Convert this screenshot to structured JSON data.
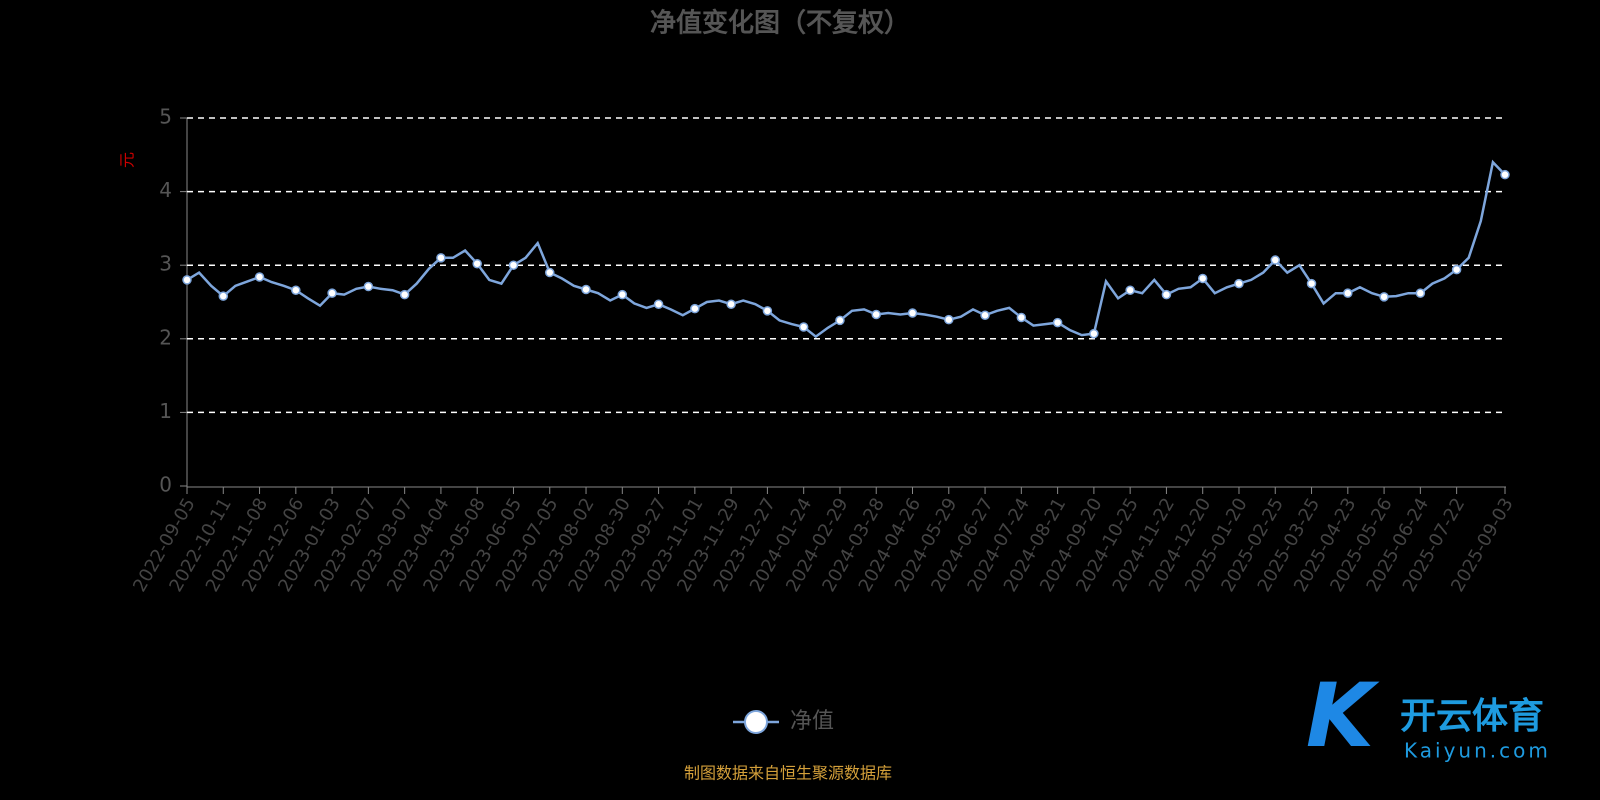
{
  "chart_data": {
    "type": "line",
    "title": "净值变化图（不复权）",
    "y_label": "元",
    "categories": [
      "2022-09-05",
      null,
      null,
      "2022-10-11",
      null,
      null,
      "2022-11-08",
      null,
      null,
      "2022-12-06",
      null,
      null,
      "2023-01-03",
      null,
      null,
      "2023-02-07",
      null,
      null,
      "2023-03-07",
      null,
      null,
      "2023-04-04",
      null,
      null,
      "2023-05-08",
      null,
      null,
      "2023-06-05",
      null,
      null,
      "2023-07-05",
      null,
      null,
      "2023-08-02",
      null,
      null,
      "2023-08-30",
      null,
      null,
      "2023-09-27",
      null,
      null,
      "2023-11-01",
      null,
      null,
      "2023-11-29",
      null,
      null,
      "2023-12-27",
      null,
      null,
      "2024-01-24",
      null,
      null,
      "2024-02-29",
      null,
      null,
      "2024-03-28",
      null,
      null,
      "2024-04-26",
      null,
      null,
      "2024-05-29",
      null,
      null,
      "2024-06-27",
      null,
      null,
      "2024-07-24",
      null,
      null,
      "2024-08-21",
      null,
      null,
      "2024-09-20",
      null,
      null,
      "2024-10-25",
      null,
      null,
      "2024-11-22",
      null,
      null,
      "2024-12-20",
      null,
      null,
      "2025-01-20",
      null,
      null,
      "2025-02-25",
      null,
      null,
      "2025-03-25",
      null,
      null,
      "2025-04-23",
      null,
      null,
      "2025-05-26",
      null,
      null,
      "2025-06-24",
      null,
      null,
      "2025-07-22",
      null,
      null,
      null,
      "2025-09-03"
    ],
    "series": [
      {
        "name": "净值",
        "color": "#7ea6dc",
        "values": [
          2.8,
          2.9,
          2.72,
          2.58,
          2.72,
          2.78,
          2.84,
          2.77,
          2.72,
          2.66,
          2.55,
          2.45,
          2.62,
          2.6,
          2.68,
          2.71,
          2.68,
          2.66,
          2.6,
          2.75,
          2.95,
          3.1,
          3.1,
          3.2,
          3.02,
          2.8,
          2.75,
          3.0,
          3.1,
          3.3,
          2.9,
          2.82,
          2.72,
          2.67,
          2.62,
          2.52,
          2.6,
          2.48,
          2.42,
          2.47,
          2.4,
          2.32,
          2.41,
          2.5,
          2.52,
          2.47,
          2.52,
          2.47,
          2.38,
          2.25,
          2.2,
          2.16,
          2.03,
          2.15,
          2.25,
          2.38,
          2.4,
          2.33,
          2.35,
          2.33,
          2.35,
          2.33,
          2.3,
          2.26,
          2.3,
          2.4,
          2.32,
          2.38,
          2.42,
          2.29,
          2.18,
          2.2,
          2.22,
          2.12,
          2.05,
          2.07,
          2.78,
          2.55,
          2.66,
          2.62,
          2.8,
          2.6,
          2.68,
          2.7,
          2.82,
          2.62,
          2.7,
          2.75,
          2.8,
          2.9,
          3.07,
          2.9,
          3.0,
          2.75,
          2.48,
          2.62,
          2.62,
          2.7,
          2.62,
          2.57,
          2.58,
          2.62,
          2.62,
          2.75,
          2.82,
          2.94,
          3.1,
          3.6,
          4.4,
          4.23
        ]
      }
    ],
    "ylim": [
      0,
      5
    ],
    "yticks": [
      0,
      1,
      2,
      3,
      4,
      5
    ],
    "grid": true,
    "source": "制图数据来自恒生聚源数据库",
    "watermark": {
      "text": "开云体育",
      "url": "Kaiyun.com"
    }
  }
}
